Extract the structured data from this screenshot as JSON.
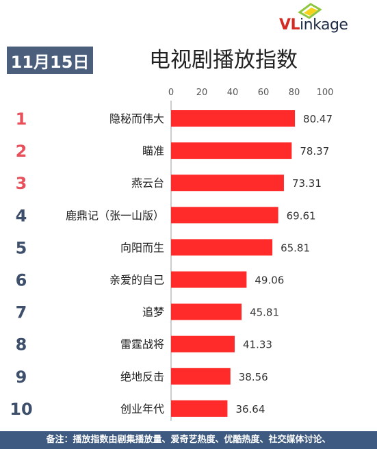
{
  "logo": {
    "text_a": "VL",
    "text_b": "inkage"
  },
  "date": "11月15日",
  "title": "电视剧播放指数",
  "footer": "备注：播放指数由剧集播放量、爱奇艺热度、优酷热度、社交媒体讨论、",
  "colors": {
    "bar": "#ff2a2a",
    "top_rank": "#e8505b",
    "rank": "#3d4f6b",
    "badge": "#4b5f7d",
    "footer": "#3e5a80"
  },
  "chart_data": {
    "type": "bar",
    "orientation": "horizontal",
    "xlim": [
      0,
      100
    ],
    "ticks": [
      0,
      20,
      40,
      60,
      80,
      100
    ],
    "ranks": [
      "1",
      "2",
      "3",
      "4",
      "5",
      "6",
      "7",
      "8",
      "9",
      "10"
    ],
    "categories": [
      "隐秘而伟大",
      "瞄准",
      "燕云台",
      "鹿鼎记（张一山版）",
      "向阳而生",
      "亲爱的自己",
      "追梦",
      "雷霆战将",
      "绝地反击",
      "创业年代"
    ],
    "values": [
      80.47,
      78.37,
      73.31,
      69.61,
      65.81,
      49.06,
      45.81,
      41.33,
      38.56,
      36.64
    ],
    "value_labels": [
      "80.47",
      "78.37",
      "73.31",
      "69.61",
      "65.81",
      "49.06",
      "45.81",
      "41.33",
      "38.56",
      "36.64"
    ]
  }
}
